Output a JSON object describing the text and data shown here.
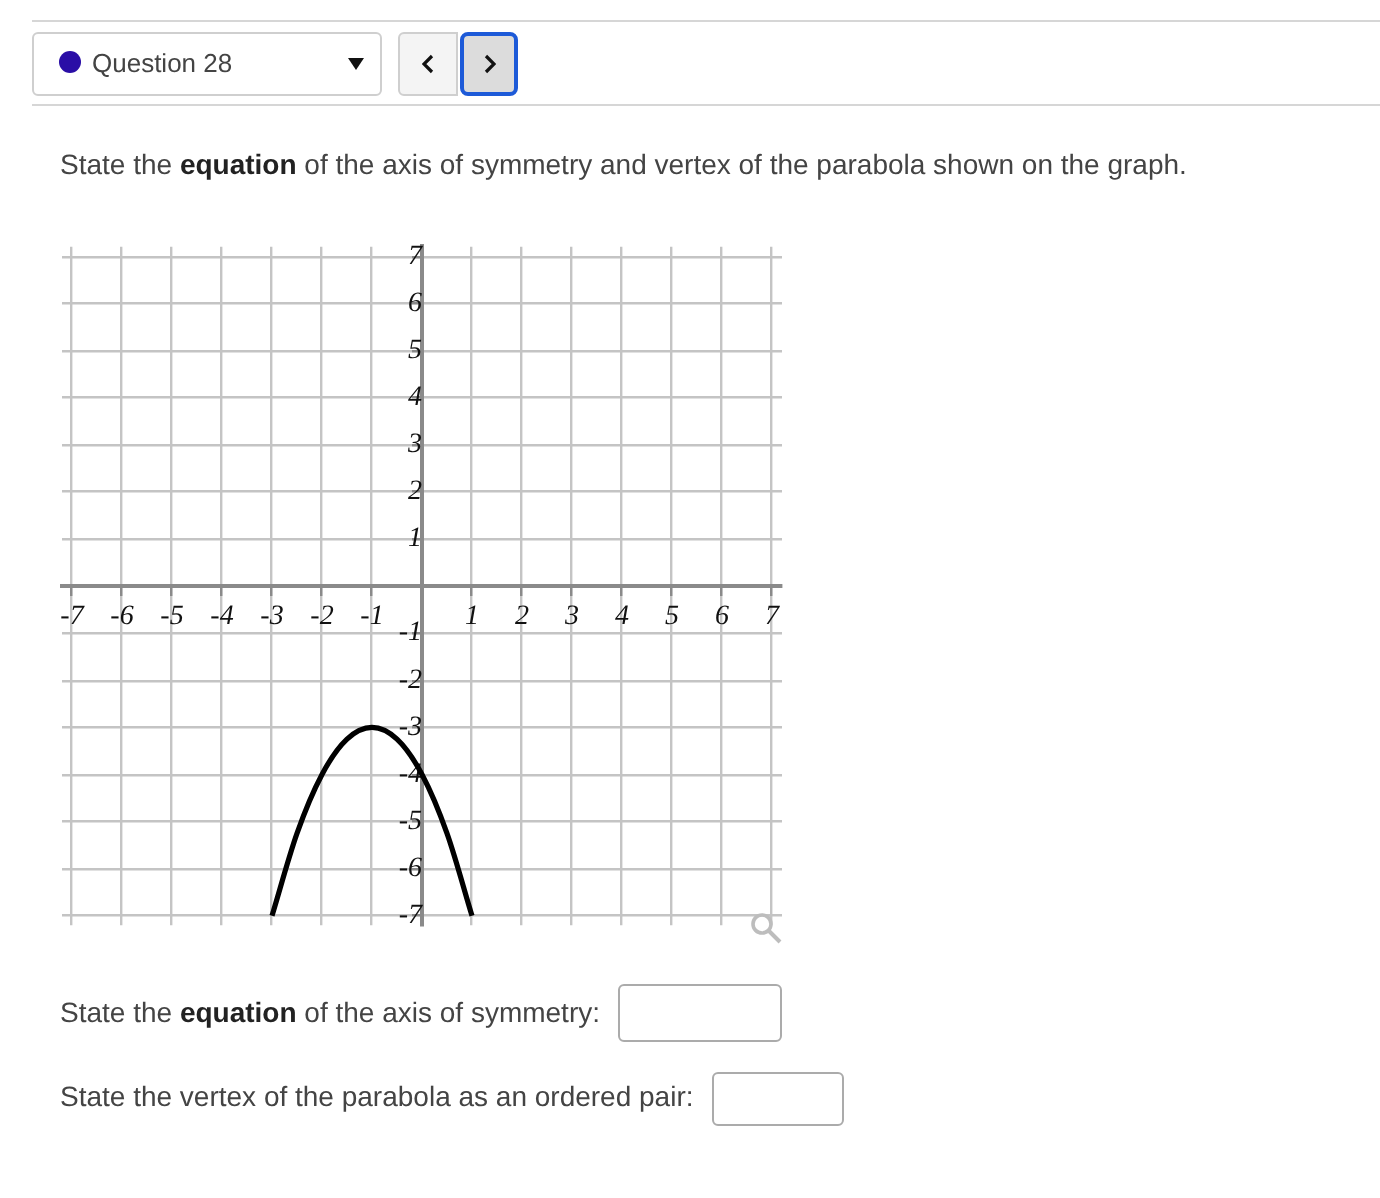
{
  "chart_data": {
    "type": "line",
    "title": "State the equation of the axis of symmetry and vertex of the parabola shown on the graph.",
    "annotations": [
      "Question 28",
      "State the equation of the axis of symmetry:",
      "State the vertex of the parabola as an ordered pair:"
    ],
    "x": [
      -3,
      -2.5,
      -2,
      -1.5,
      -1,
      -0.5,
      0,
      0.5,
      1
    ],
    "values": [
      -7,
      -5.25,
      -4,
      -3.25,
      -3,
      -3.25,
      -4,
      -5.25,
      -7
    ],
    "color": "#000000",
    "xlim": [
      -7.2,
      7.2
    ],
    "ylim": [
      -7.2,
      7.2
    ],
    "xticks": [
      -7,
      -6,
      -5,
      -4,
      -3,
      -2,
      -1,
      {
        "value": 0,
        "label": null
      },
      1,
      2,
      3,
      4,
      5,
      6,
      7
    ],
    "yticks": [
      -7,
      -6,
      -5,
      -4,
      -3,
      -2,
      -1,
      {
        "value": 0,
        "label": null
      },
      1,
      2,
      3,
      4,
      5,
      6,
      7
    ],
    "grid": true,
    "marker": "none"
  }
}
